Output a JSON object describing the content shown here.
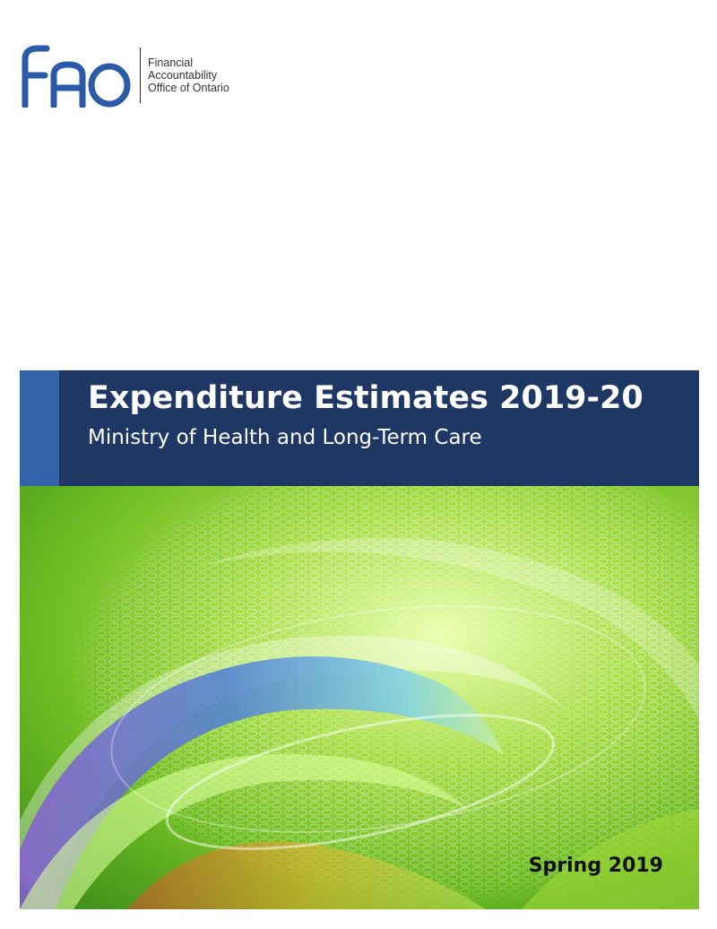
{
  "logo": {
    "mark_text": "FAO",
    "org_name_lines": [
      "Financial",
      "Accountability",
      "Office of Ontario"
    ],
    "brand_color": "#2b5ba8"
  },
  "banner": {
    "title": "Expenditure Estimates 2019-20",
    "subtitle": "Ministry of Health and Long-Term Care",
    "background_color": "#1f3764",
    "accent_color": "#3363a8"
  },
  "cover": {
    "date_label": "Spring 2019",
    "image_description_palette": [
      "#7fc425",
      "#b8e65a",
      "#3a9a2a",
      "#4f7fd6",
      "#8a5ad0",
      "#f0b030"
    ]
  }
}
